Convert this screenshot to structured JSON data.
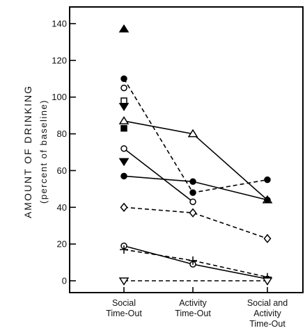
{
  "chart_data": {
    "type": "line",
    "ylabel_line1": "AMOUNT OF DRINKING",
    "ylabel_line2": "(percent of baseline)",
    "categories": [
      [
        "Social",
        "Time-Out"
      ],
      [
        "Activity",
        "Time-Out"
      ],
      [
        "Social and",
        "Activity",
        "Time-Out"
      ]
    ],
    "yticks": [
      0,
      20,
      40,
      60,
      80,
      100,
      120,
      140
    ],
    "ylim": [
      -5,
      150
    ],
    "grid": false,
    "series": [
      {
        "marker": "triangle-up",
        "filled": false,
        "dash": false,
        "values": [
          87,
          80,
          44
        ]
      },
      {
        "marker": "circle",
        "filled": true,
        "dash": true,
        "values": [
          110,
          48,
          55
        ]
      },
      {
        "marker": "circle",
        "filled": false,
        "dash": false,
        "values": [
          72,
          43,
          null
        ]
      },
      {
        "marker": "circle",
        "filled": true,
        "dash": false,
        "values": [
          57,
          54,
          44
        ]
      },
      {
        "marker": "diamond",
        "filled": false,
        "dash": true,
        "values": [
          40,
          37,
          23
        ]
      },
      {
        "marker": "circle",
        "filled": false,
        "dash": false,
        "values": [
          19,
          9,
          1
        ]
      },
      {
        "marker": "plus",
        "filled": false,
        "dash": true,
        "values": [
          17,
          11,
          2
        ]
      },
      {
        "marker": "triangle-down",
        "filled": false,
        "dash": true,
        "values": [
          0,
          null,
          0
        ]
      },
      {
        "marker": "triangle-up",
        "filled": true,
        "dash": false,
        "values": [
          137,
          null,
          null
        ]
      },
      {
        "marker": "circle",
        "filled": false,
        "dash": false,
        "values": [
          105,
          null,
          null
        ]
      },
      {
        "marker": "square",
        "filled": false,
        "dash": false,
        "values": [
          98,
          null,
          null
        ]
      },
      {
        "marker": "triangle-down",
        "filled": true,
        "dash": false,
        "values": [
          95,
          null,
          null
        ]
      },
      {
        "marker": "square",
        "filled": true,
        "dash": false,
        "values": [
          83,
          null,
          null
        ]
      },
      {
        "marker": "triangle-down",
        "filled": true,
        "dash": false,
        "values": [
          65,
          null,
          null
        ]
      }
    ]
  }
}
